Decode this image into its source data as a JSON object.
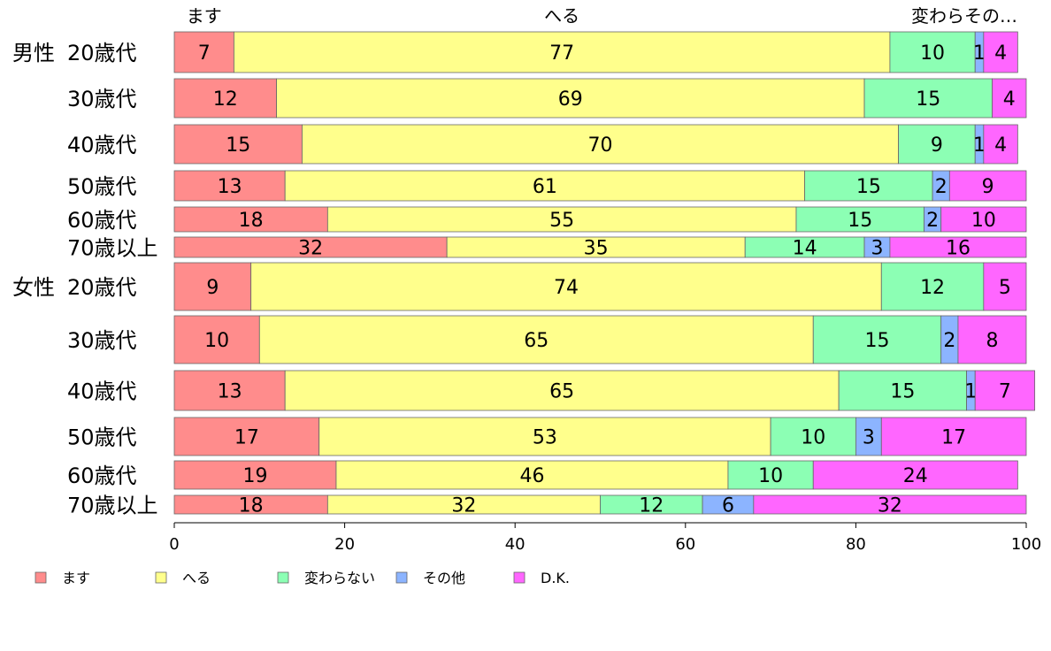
{
  "chart_data": {
    "type": "bar",
    "orientation": "horizontal",
    "stacked": true,
    "top_labels": [
      "ます",
      "へる",
      "変わらその…"
    ],
    "groups": [
      {
        "label": "男性",
        "rows": [
          "20歳代",
          "30歳代",
          "40歳代",
          "50歳代",
          "60歳代",
          "70歳以上"
        ]
      },
      {
        "label": "女性",
        "rows": [
          "20歳代",
          "30歳代",
          "40歳代",
          "50歳代",
          "60歳代",
          "70歳以上"
        ]
      }
    ],
    "series": [
      {
        "name": "ます",
        "color": "#ff8c8c",
        "values": [
          7,
          12,
          15,
          13,
          18,
          32,
          9,
          10,
          13,
          17,
          19,
          18
        ]
      },
      {
        "name": "へる",
        "color": "#ffff8c",
        "values": [
          77,
          69,
          70,
          61,
          55,
          35,
          74,
          65,
          65,
          53,
          46,
          32
        ]
      },
      {
        "name": "変わらない",
        "color": "#8cffb4",
        "values": [
          10,
          15,
          9,
          15,
          15,
          14,
          12,
          15,
          15,
          10,
          10,
          12
        ]
      },
      {
        "name": "その他",
        "color": "#8cb4ff",
        "values": [
          1,
          0,
          1,
          2,
          2,
          3,
          0,
          2,
          1,
          3,
          0,
          6
        ]
      },
      {
        "name": "D.K.",
        "color": "#ff66ff",
        "values": [
          4,
          4,
          4,
          9,
          10,
          16,
          5,
          8,
          7,
          17,
          24,
          32
        ]
      }
    ],
    "xlim": [
      0,
      100
    ],
    "xticks": [
      "0",
      "20",
      "40",
      "60",
      "80",
      "100"
    ],
    "legend_position": "bottom-left",
    "grid": false
  }
}
